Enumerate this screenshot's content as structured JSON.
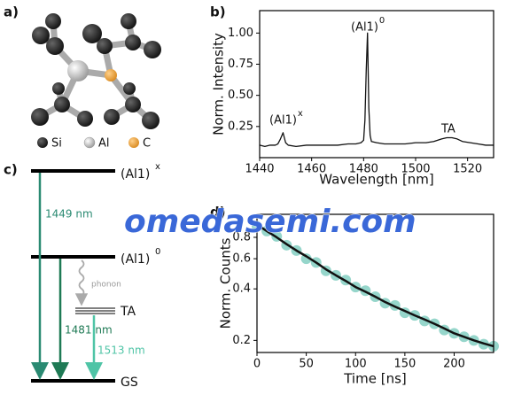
{
  "panel_labels": [
    "a)",
    "b)",
    "c)",
    "d)"
  ],
  "structure_legend": [
    "Si",
    "Al",
    "C"
  ],
  "diagram": {
    "levels": [
      {
        "text": "(Al1)",
        "sup": "x"
      },
      {
        "text": "(Al1)",
        "sup": "0"
      },
      {
        "text": "TA"
      },
      {
        "text": "GS"
      }
    ],
    "transitions": [
      "1449 nm",
      "1481 nm",
      "1513 nm"
    ],
    "phonon": "phonon"
  },
  "watermark": "omedasemi.com",
  "chart_data": [
    {
      "type": "line",
      "xlabel": "Wavelength [nm]",
      "ylabel": "Norm. Intensity",
      "x": [
        1440,
        1442,
        1444,
        1446,
        1447,
        1448,
        1449,
        1450,
        1451,
        1454,
        1458,
        1462,
        1466,
        1470,
        1474,
        1477,
        1479,
        1480,
        1480.5,
        1481,
        1481.5,
        1482,
        1482.5,
        1483,
        1485,
        1488,
        1492,
        1496,
        1500,
        1504,
        1507,
        1510,
        1512,
        1514,
        1516,
        1518,
        1521,
        1524,
        1527,
        1530
      ],
      "series": [
        {
          "color": "#111111",
          "style": "line",
          "values": [
            0.1,
            0.09,
            0.1,
            0.1,
            0.11,
            0.15,
            0.2,
            0.12,
            0.1,
            0.09,
            0.1,
            0.1,
            0.1,
            0.1,
            0.11,
            0.11,
            0.12,
            0.14,
            0.3,
            0.7,
            1.0,
            0.4,
            0.18,
            0.13,
            0.12,
            0.11,
            0.11,
            0.11,
            0.12,
            0.12,
            0.13,
            0.15,
            0.16,
            0.16,
            0.15,
            0.13,
            0.12,
            0.11,
            0.1,
            0.1
          ]
        }
      ],
      "annotations": [
        {
          "text": "(Al1)",
          "sup": "x"
        },
        {
          "text": "(Al1)",
          "sup": "0"
        },
        {
          "text": "TA"
        }
      ],
      "xlim": [
        1440,
        1530
      ],
      "xticks": [
        1440,
        1460,
        1480,
        1500,
        1520
      ],
      "ylim": [
        0,
        1.18
      ],
      "yticks": [
        0.25,
        {
          "value": 0.5,
          "label": "0.50"
        },
        0.75,
        {
          "value": 1,
          "label": "1.00"
        }
      ],
      "yscale": "linear"
    },
    {
      "type": "line",
      "xlabel": "Time [ns]",
      "ylabel": "Norm. Counts",
      "x": [
        0,
        10,
        20,
        30,
        40,
        50,
        60,
        70,
        80,
        90,
        100,
        110,
        120,
        130,
        140,
        150,
        160,
        170,
        180,
        190,
        200,
        210,
        220,
        230,
        240
      ],
      "series": [
        {
          "color": "#3fb5a0",
          "style": "markers",
          "values": [
            0.93,
            0.87,
            0.81,
            0.72,
            0.67,
            0.6,
            0.57,
            0.51,
            0.48,
            0.45,
            0.41,
            0.39,
            0.36,
            0.33,
            0.32,
            0.29,
            0.28,
            0.26,
            0.25,
            0.23,
            0.22,
            0.21,
            0.2,
            0.19,
            0.185
          ]
        },
        {
          "color": "#111111",
          "style": "line",
          "values": [
            0.95,
            0.87,
            0.8,
            0.73,
            0.67,
            0.62,
            0.57,
            0.52,
            0.48,
            0.445,
            0.41,
            0.385,
            0.36,
            0.335,
            0.315,
            0.297,
            0.28,
            0.265,
            0.25,
            0.235,
            0.22,
            0.21,
            0.2,
            0.192,
            0.185
          ]
        }
      ],
      "xlim": [
        0,
        240
      ],
      "xticks": [
        0,
        50,
        100,
        150,
        200
      ],
      "ylim": [
        0.17,
        1.09
      ],
      "yticks": [
        0.2,
        0.4,
        0.6,
        0.8
      ],
      "yscale": "log"
    }
  ]
}
